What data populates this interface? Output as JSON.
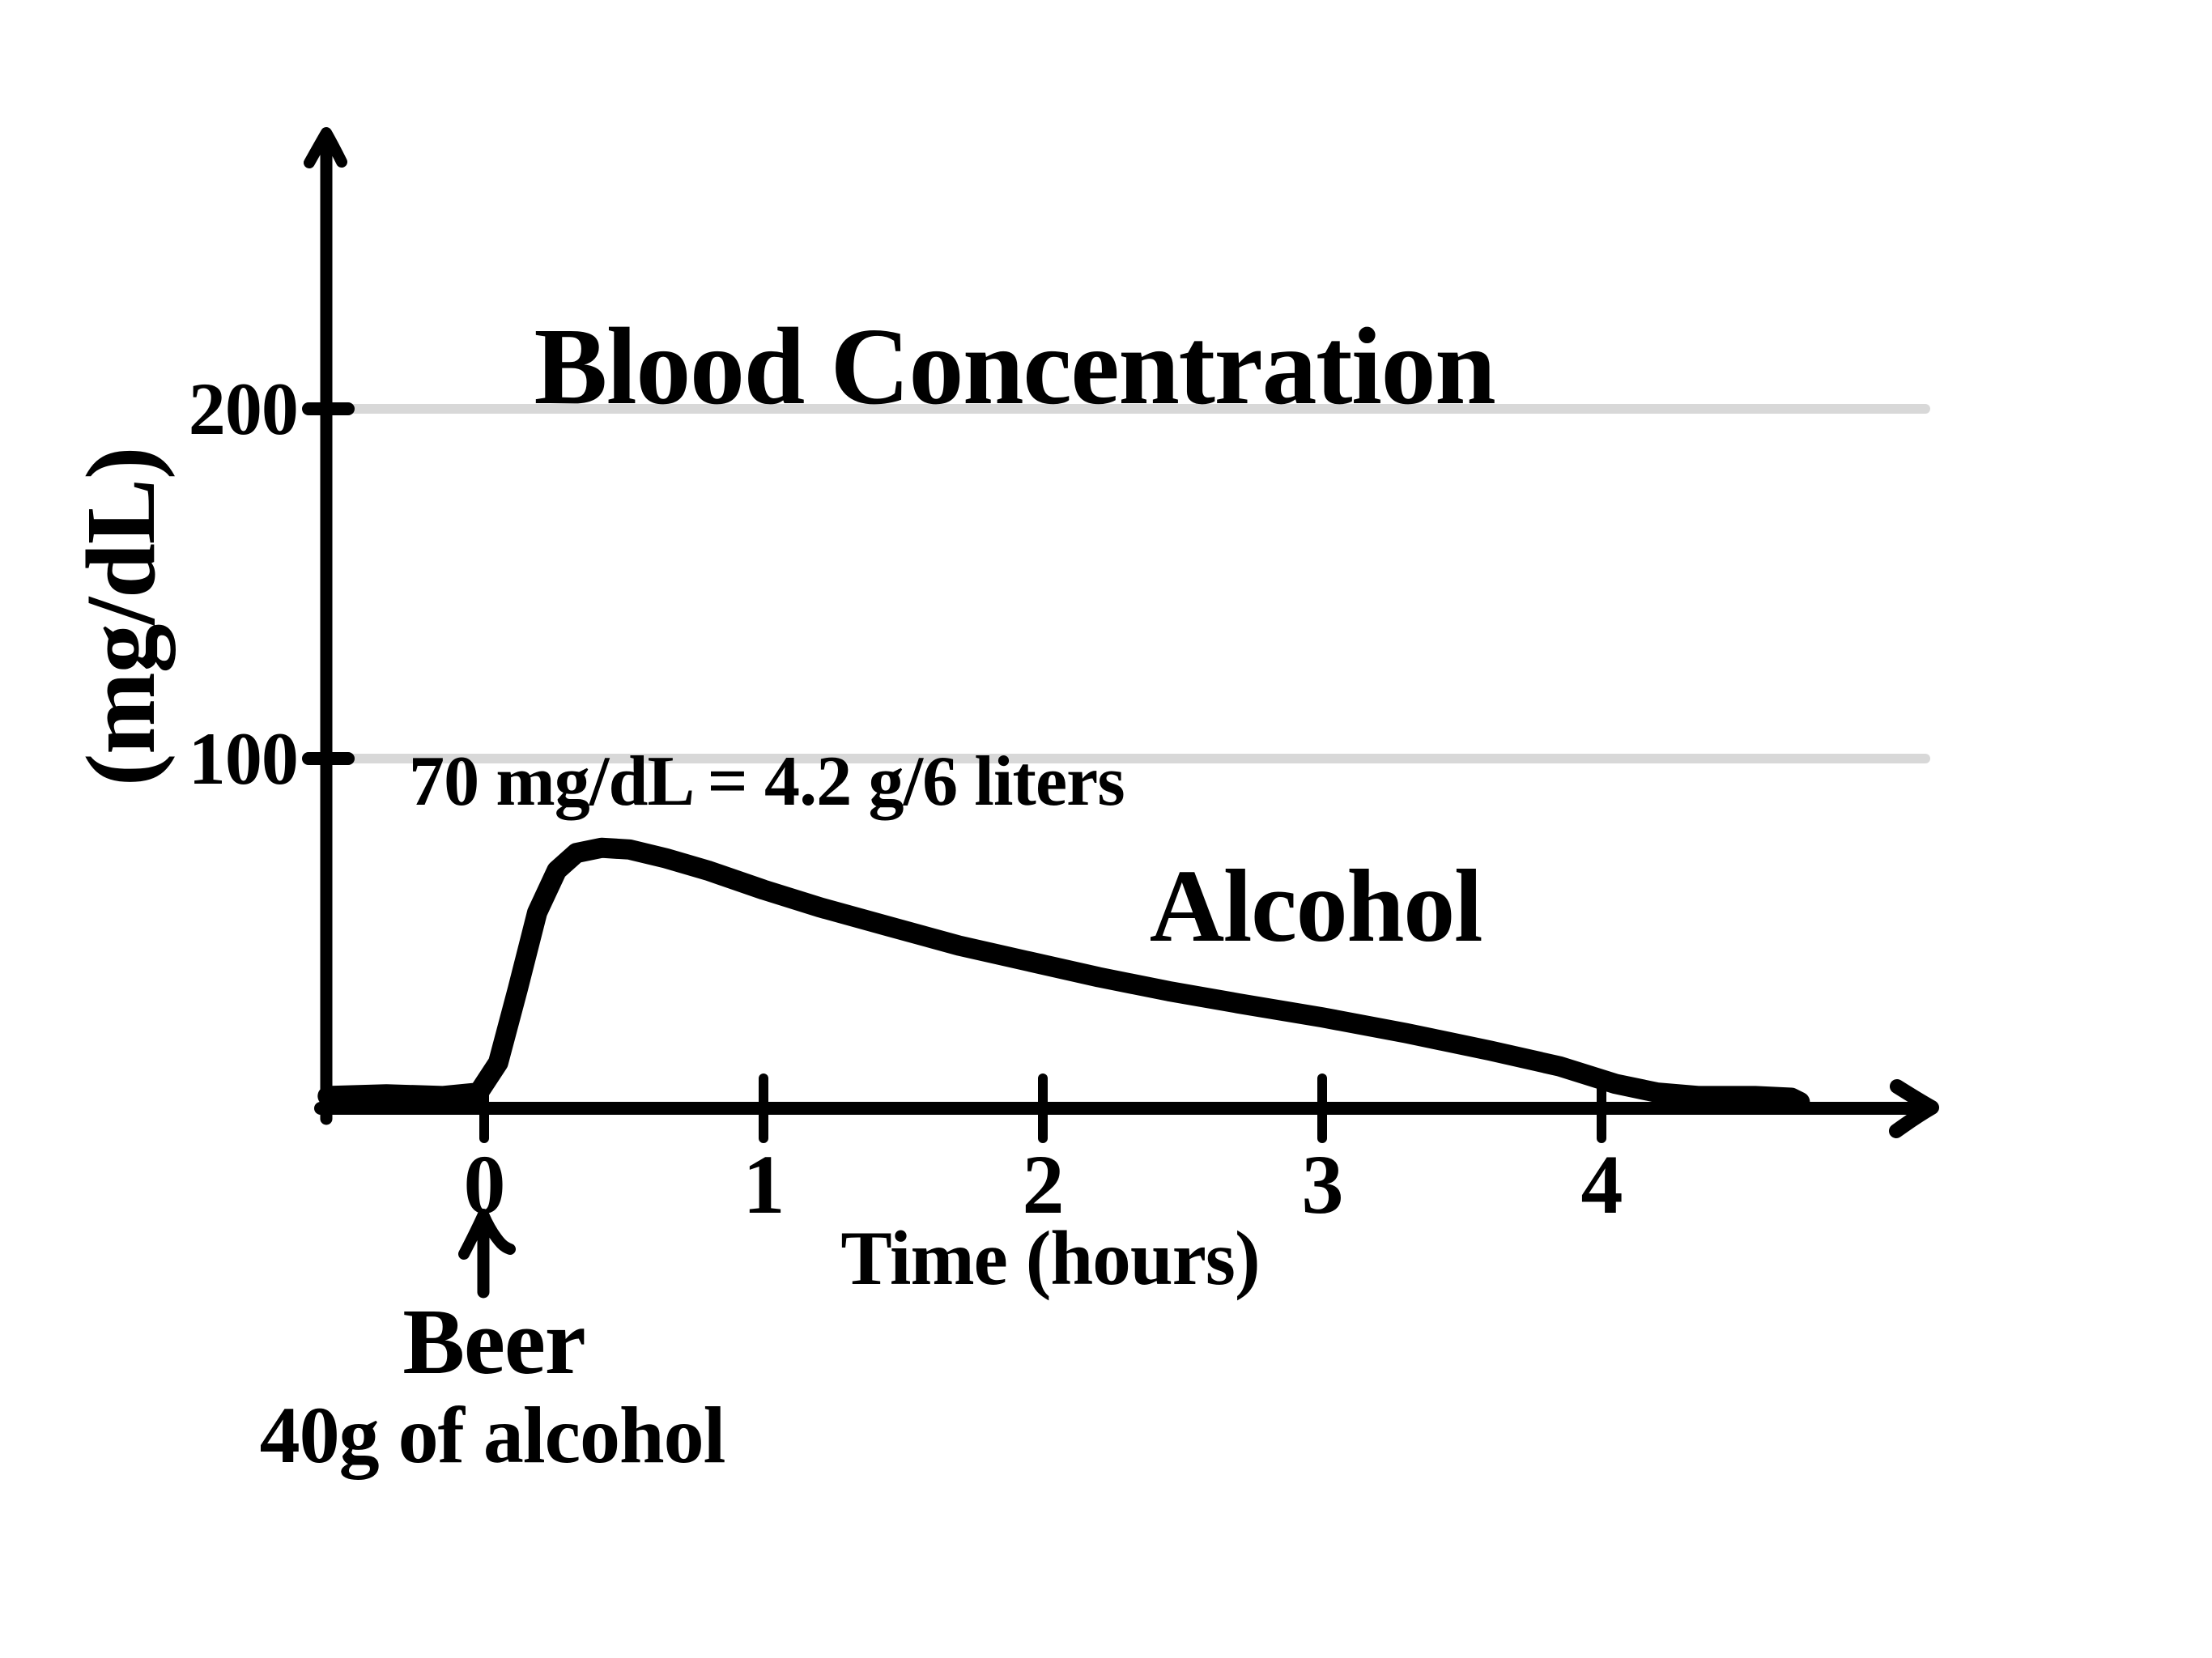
{
  "title": "Blood Concentration",
  "y_axis": {
    "label": "(mg/dL)",
    "tick_labels": [
      "200",
      "100"
    ]
  },
  "x_axis": {
    "label": "Time (hours)",
    "tick_labels": [
      "0",
      "1",
      "2",
      "3",
      "4"
    ]
  },
  "annotation": {
    "text": "70 mg/dL = 4.2 g/6 liters"
  },
  "series_label": "Alcohol",
  "event": {
    "label": "Beer",
    "sublabel": "40g of alcohol"
  },
  "colors": {
    "ink": "#000000",
    "grid": "#d8d8d8",
    "background": "#ffffff"
  },
  "chart_data": {
    "type": "line",
    "title": "Blood Concentration",
    "xlabel": "Time (hours)",
    "ylabel": "(mg/dL)",
    "xlim": [
      -0.6,
      5.2
    ],
    "ylim": [
      0,
      260
    ],
    "x_ticks": [
      0,
      1,
      2,
      3,
      4
    ],
    "y_ticks": [
      200,
      100
    ],
    "grid": "horizontal gray lines at y=100 and y=200 only",
    "legend_position": "none (series labeled inline as Alcohol)",
    "series": [
      {
        "name": "Alcohol",
        "points": [
          [
            -0.56,
            3.5
          ],
          [
            -0.35,
            4
          ],
          [
            -0.15,
            3.5
          ],
          [
            -0.02,
            4.5
          ],
          [
            0.05,
            13
          ],
          [
            0.12,
            34
          ],
          [
            0.19,
            56
          ],
          [
            0.26,
            68
          ],
          [
            0.33,
            73
          ],
          [
            0.42,
            74.5
          ],
          [
            0.52,
            74
          ],
          [
            0.65,
            71.5
          ],
          [
            0.8,
            68
          ],
          [
            1.0,
            62.5
          ],
          [
            1.2,
            57.5
          ],
          [
            1.45,
            52
          ],
          [
            1.7,
            46.5
          ],
          [
            1.95,
            42
          ],
          [
            2.2,
            37.5
          ],
          [
            2.45,
            33.5
          ],
          [
            2.7,
            30
          ],
          [
            3.0,
            26
          ],
          [
            3.3,
            21.5
          ],
          [
            3.6,
            16.5
          ],
          [
            3.85,
            12
          ],
          [
            4.05,
            7
          ],
          [
            4.2,
            4.5
          ],
          [
            4.35,
            3.5
          ],
          [
            4.55,
            3.5
          ],
          [
            4.68,
            3
          ],
          [
            4.71,
            1.8
          ]
        ]
      }
    ],
    "annotations": [
      {
        "text": "70 mg/dL = 4.2 g/6 liters",
        "near": [
          0.8,
          90
        ]
      },
      {
        "text": "Alcohol",
        "near": [
          3.0,
          55
        ]
      },
      {
        "text": "Beer",
        "at_x": 0,
        "below_axis": true
      },
      {
        "text": "40g of alcohol",
        "at_x": 0,
        "below_axis": true
      }
    ],
    "event_marker": {
      "type": "up-arrow",
      "x": 0,
      "label": "Beer 40g of alcohol"
    },
    "peak": {
      "t": 0.45,
      "value": 74.5
    },
    "curve_returns_to_baseline_at_t": 4.2
  }
}
